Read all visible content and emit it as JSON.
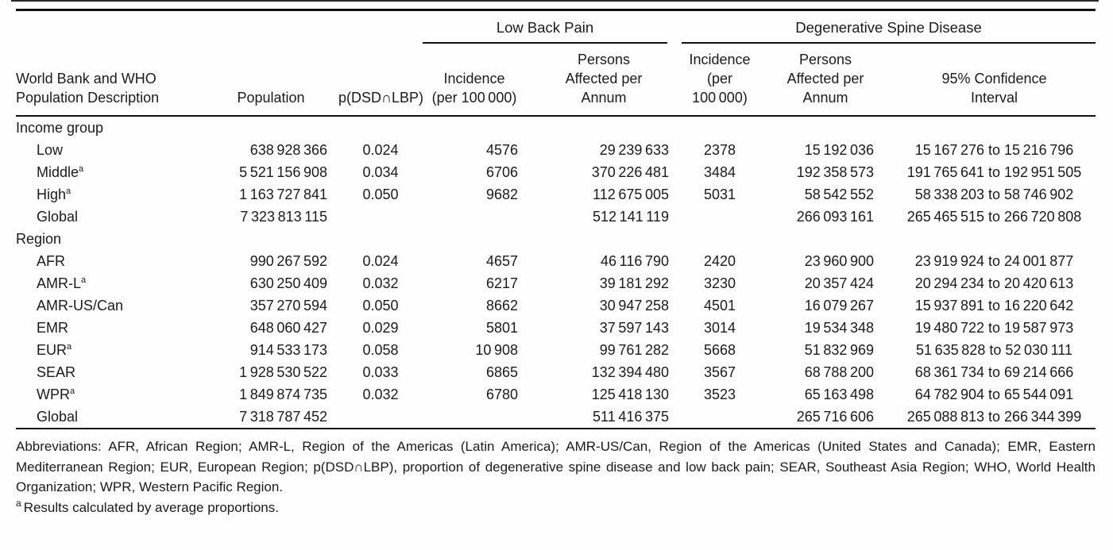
{
  "table": {
    "group_headers": {
      "lbp": "Low Back Pain",
      "dsd": "Degenerative Spine Disease"
    },
    "columns": [
      "World Bank and WHO Population Description",
      "Population",
      "p(DSD∩LBP)",
      "Incidence (per 100 000)",
      "Persons Affected per Annum",
      "Incidence (per 100 000)",
      "Persons Affected per Annum",
      "95% Confidence Interval"
    ],
    "sections": [
      {
        "label": "Income group",
        "rows": [
          {
            "label": "Low",
            "sup": "",
            "values": [
              "638 928 366",
              "0.024",
              "4576",
              "29 239 633",
              "2378",
              "15 192 036",
              "15 167 276 to 15 216 796"
            ]
          },
          {
            "label": "Middle",
            "sup": "a",
            "values": [
              "5 521 156 908",
              "0.034",
              "6706",
              "370 226 481",
              "3484",
              "192 358 573",
              "191 765 641 to 192 951 505"
            ]
          },
          {
            "label": "High",
            "sup": "a",
            "values": [
              "1 163 727 841",
              "0.050",
              "9682",
              "112 675 005",
              "5031",
              "58 542 552",
              "58 338 203 to 58 746 902"
            ]
          },
          {
            "label": "Global",
            "sup": "",
            "values": [
              "7 323 813 115",
              "",
              "",
              "512 141 119",
              "",
              "266 093 161",
              "265 465 515 to 266 720 808"
            ]
          }
        ]
      },
      {
        "label": "Region",
        "rows": [
          {
            "label": "AFR",
            "sup": "",
            "values": [
              "990 267 592",
              "0.024",
              "4657",
              "46 116 790",
              "2420",
              "23 960 900",
              "23 919 924 to 24 001 877"
            ]
          },
          {
            "label": "AMR-L",
            "sup": "a",
            "values": [
              "630 250 409",
              "0.032",
              "6217",
              "39 181 292",
              "3230",
              "20 357 424",
              "20 294 234 to 20 420 613"
            ]
          },
          {
            "label": "AMR-US/Can",
            "sup": "",
            "values": [
              "357 270 594",
              "0.050",
              "8662",
              "30 947 258",
              "4501",
              "16 079 267",
              "15 937 891 to 16 220 642"
            ]
          },
          {
            "label": "EMR",
            "sup": "",
            "values": [
              "648 060 427",
              "0.029",
              "5801",
              "37 597 143",
              "3014",
              "19 534 348",
              "19 480 722 to 19 587 973"
            ]
          },
          {
            "label": "EUR",
            "sup": "a",
            "values": [
              "914 533 173",
              "0.058",
              "10 908",
              "99 761 282",
              "5668",
              "51 832 969",
              "51 635 828 to 52 030 111"
            ]
          },
          {
            "label": "SEAR",
            "sup": "",
            "values": [
              "1 928 530 522",
              "0.033",
              "6865",
              "132 394 480",
              "3567",
              "68 788 200",
              "68 361 734 to 69 214 666"
            ]
          },
          {
            "label": "WPR",
            "sup": "a",
            "values": [
              "1 849 874 735",
              "0.032",
              "6780",
              "125 418 130",
              "3523",
              "65 163 498",
              "64 782 904 to 65 544 091"
            ]
          },
          {
            "label": "Global",
            "sup": "",
            "values": [
              "7 318 787 452",
              "",
              "",
              "511 416 375",
              "",
              "265 716 606",
              "265 088 813 to 266 344 399"
            ]
          }
        ]
      }
    ]
  },
  "footnotes": {
    "abbreviations": "Abbreviations: AFR, African Region; AMR-L, Region of the Americas (Latin America); AMR-US/Can, Region of the Americas (United States and Canada); EMR, Eastern Mediterranean Region; EUR, European Region; p(DSD∩LBP), proportion of degenerative spine disease and low back pain; SEAR, Southeast Asia Region; WHO, World Health Organization; WPR, Western Pacific Region.",
    "a_marker": "a",
    "a_text": "Results calculated by average proportions."
  }
}
